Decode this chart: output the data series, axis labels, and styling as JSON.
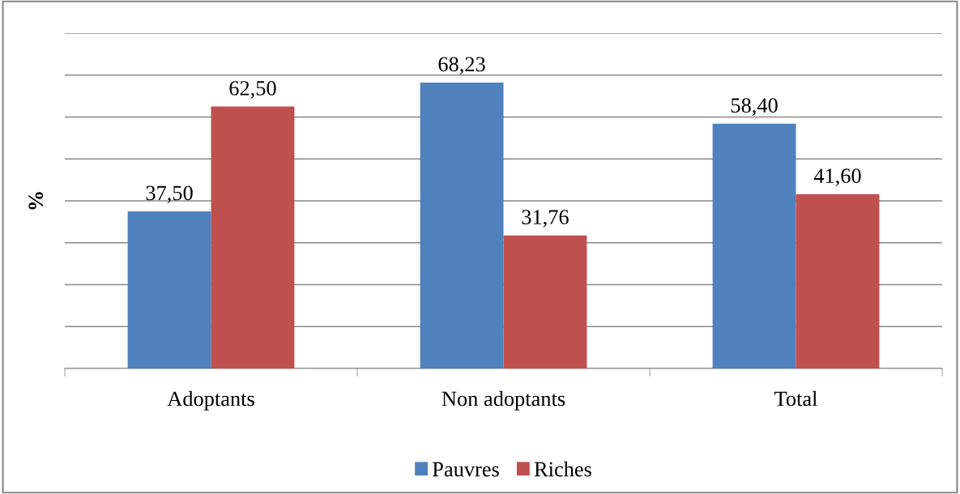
{
  "chart_data": {
    "type": "bar",
    "ylabel": "%",
    "categories": [
      "Adoptants",
      "Non adoptants",
      "Total"
    ],
    "series": [
      {
        "name": "Pauvres",
        "color": "#4f81bd",
        "values": [
          37.5,
          68.23,
          58.4
        ],
        "value_labels": [
          "37,50",
          "68,23",
          "58,40"
        ]
      },
      {
        "name": "Riches",
        "color": "#c0504d",
        "values": [
          62.5,
          31.76,
          41.6
        ],
        "value_labels": [
          "62,50",
          "31,76",
          "41,60"
        ]
      }
    ],
    "ylim": [
      0,
      80
    ],
    "yticks": [
      {
        "value": 0,
        "label": null
      },
      {
        "value": 10,
        "label": null
      },
      {
        "value": 20,
        "label": null
      },
      {
        "value": 30,
        "label": null
      },
      {
        "value": 40,
        "label": null
      },
      {
        "value": 50,
        "label": null
      },
      {
        "value": 60,
        "label": null
      },
      {
        "value": 70,
        "label": null
      },
      {
        "value": 80,
        "label": null
      }
    ],
    "tick_labels": "x",
    "grid": "y",
    "legend": "bottom"
  }
}
